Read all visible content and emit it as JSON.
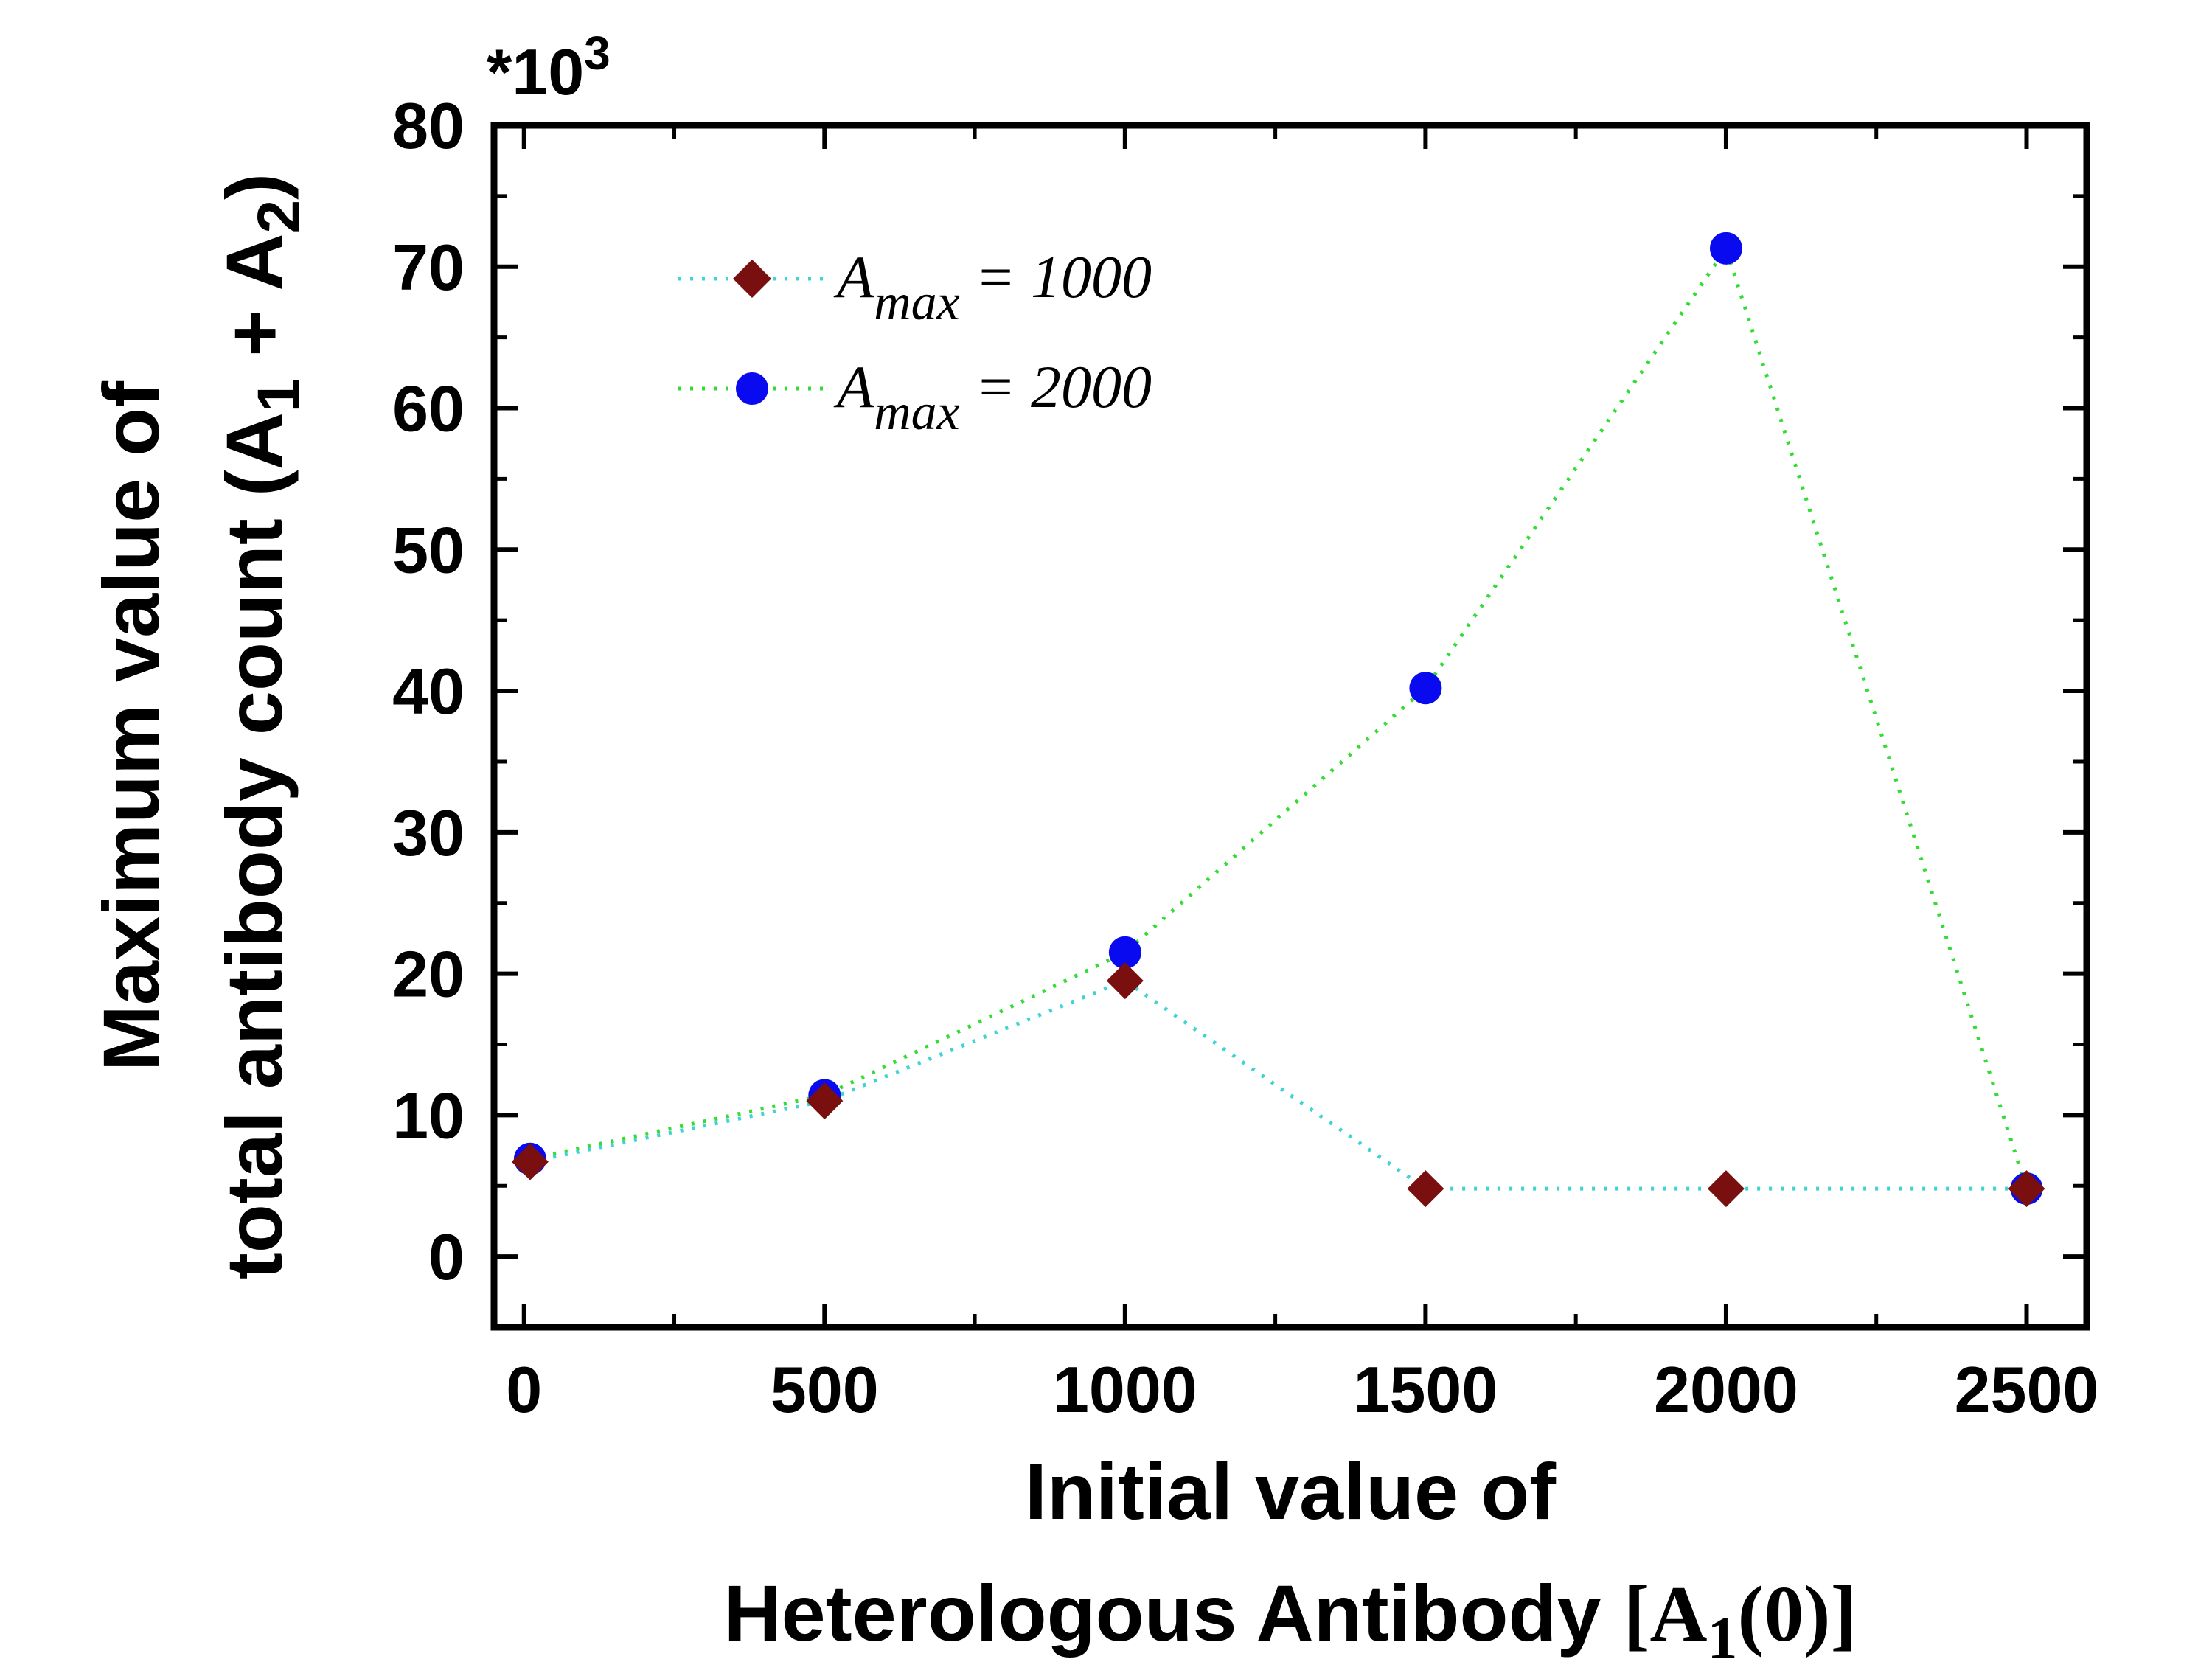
{
  "chart_data": {
    "type": "scatter",
    "title": "",
    "xlabel_line1": "Initial value of",
    "xlabel_line2_prefix": "Heterologous Antibody ",
    "xlabel_line2_math": "[A",
    "xlabel_line2_sub": "1",
    "xlabel_line2_end": "(0)]",
    "ylabel_line1": "Maximum value of",
    "ylabel_line2_prefix": "total antibody count (A",
    "ylabel_line2_sub1": "1",
    "ylabel_line2_mid": " + A",
    "ylabel_line2_sub2": "2",
    "ylabel_line2_end": ")",
    "y_multiplier_base": "*10",
    "y_multiplier_exp": "3",
    "xlim": [
      -50,
      2600
    ],
    "ylim": [
      -5,
      80
    ],
    "xticks": [
      0,
      500,
      1000,
      1500,
      2000,
      2500
    ],
    "xtick_labels": [
      "0",
      "500",
      "1000",
      "1500",
      "2000",
      "2500"
    ],
    "yticks": [
      0,
      10,
      20,
      30,
      40,
      50,
      60,
      70,
      80
    ],
    "ytick_labels": [
      "0",
      "10",
      "20",
      "30",
      "40",
      "50",
      "60",
      "70",
      "80"
    ],
    "series": [
      {
        "name_base": "A",
        "name_sub": "max",
        "name_rest": " = 1000",
        "marker": "diamond",
        "marker_color": "#7a0f0f",
        "line_color": "#3fd4d4",
        "line_style": "dotted",
        "x": [
          10,
          500,
          1000,
          1500,
          2000,
          2500
        ],
        "y": [
          6.7,
          11.0,
          19.5,
          4.8,
          4.8,
          4.8
        ]
      },
      {
        "name_base": "A",
        "name_sub": "max",
        "name_rest": " = 2000",
        "marker": "circle",
        "marker_color": "#0a0af0",
        "line_color": "#33dd33",
        "line_style": "dotted",
        "x": [
          10,
          500,
          1000,
          1500,
          2000,
          2500
        ],
        "y": [
          6.9,
          11.4,
          21.5,
          40.2,
          71.3,
          4.8
        ]
      }
    ],
    "legend_position": "top-left",
    "grid": false
  }
}
